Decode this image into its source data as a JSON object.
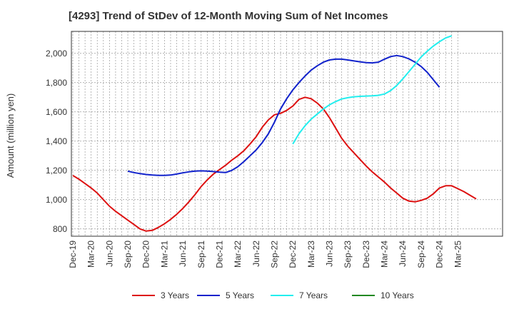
{
  "chart_data": {
    "type": "line",
    "title": "[4293]  Trend of StDev of 12-Month Moving Sum of Net Incomes",
    "xlabel": "",
    "ylabel": "Amount (million yen)",
    "ylim": [
      750,
      2150
    ],
    "y_ticks": [
      800,
      1000,
      1200,
      1400,
      1600,
      1800,
      2000
    ],
    "y_tick_labels": [
      "800",
      "1,000",
      "1,200",
      "1,400",
      "1,600",
      "1,800",
      "2,000"
    ],
    "x_tick_labels": [
      "Dec-19",
      "Mar-20",
      "Jun-20",
      "Sep-20",
      "Dec-20",
      "Mar-21",
      "Jun-21",
      "Sep-21",
      "Dec-21",
      "Mar-22",
      "Jun-22",
      "Sep-22",
      "Dec-22",
      "Mar-23",
      "Jun-23",
      "Sep-23",
      "Dec-23",
      "Mar-24",
      "Jun-24",
      "Sep-24",
      "Dec-24",
      "Mar-25"
    ],
    "grid": true,
    "legend_position": "bottom",
    "series": [
      {
        "name": "3 Years",
        "color": "#dd1111",
        "start_index": 0,
        "values": [
          1165,
          1140,
          1110,
          1080,
          1045,
          1000,
          955,
          920,
          890,
          860,
          830,
          800,
          785,
          790,
          810,
          835,
          865,
          900,
          940,
          985,
          1035,
          1090,
          1135,
          1175,
          1205,
          1235,
          1270,
          1300,
          1335,
          1380,
          1430,
          1495,
          1545,
          1580,
          1590,
          1610,
          1640,
          1685,
          1700,
          1690,
          1660,
          1620,
          1560,
          1490,
          1420,
          1365,
          1320,
          1275,
          1230,
          1190,
          1155,
          1120,
          1080,
          1045,
          1010,
          990,
          985,
          995,
          1010,
          1040,
          1080,
          1095,
          1095,
          1075,
          1055,
          1030,
          1005
        ]
      },
      {
        "name": "5 Years",
        "color": "#1122cc",
        "start_index": 9,
        "values": [
          1195,
          1185,
          1178,
          1172,
          1168,
          1166,
          1166,
          1168,
          1175,
          1183,
          1190,
          1195,
          1197,
          1195,
          1192,
          1188,
          1185,
          1200,
          1225,
          1260,
          1300,
          1340,
          1390,
          1450,
          1530,
          1620,
          1690,
          1750,
          1800,
          1845,
          1885,
          1915,
          1940,
          1955,
          1960,
          1960,
          1955,
          1948,
          1942,
          1937,
          1935,
          1940,
          1960,
          1978,
          1985,
          1978,
          1962,
          1940,
          1910,
          1870,
          1820,
          1768
        ]
      },
      {
        "name": "7 Years",
        "color": "#22eeee",
        "start_index": 36,
        "values": [
          1380,
          1450,
          1505,
          1550,
          1585,
          1620,
          1648,
          1670,
          1688,
          1697,
          1703,
          1706,
          1708,
          1710,
          1713,
          1722,
          1745,
          1780,
          1825,
          1875,
          1925,
          1975,
          2015,
          2050,
          2080,
          2105,
          2120
        ]
      },
      {
        "name": "10 Years",
        "color": "#228822",
        "start_index": 0,
        "values": []
      }
    ]
  }
}
